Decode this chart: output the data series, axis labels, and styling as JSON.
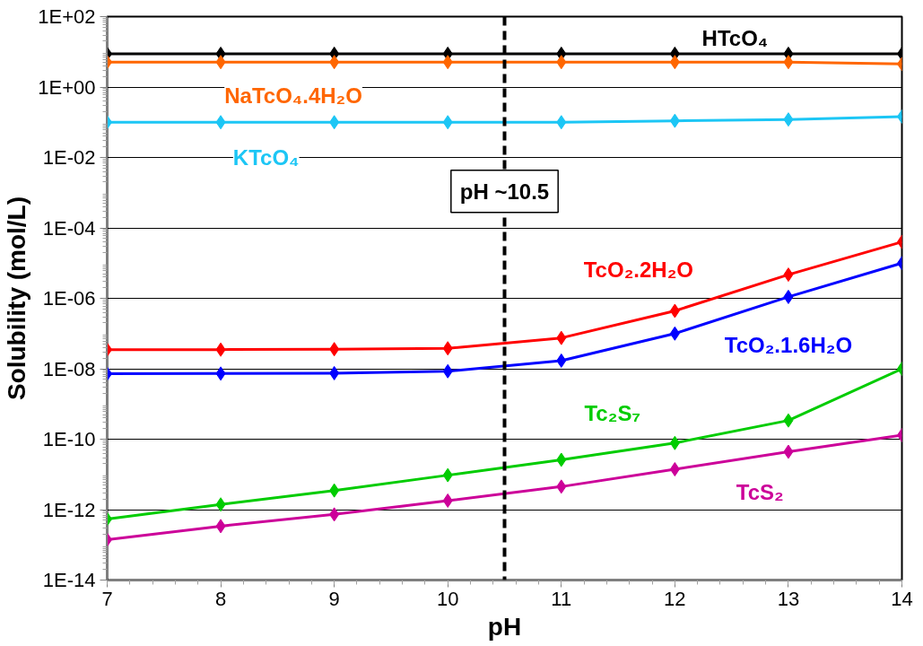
{
  "chart_data": {
    "type": "line",
    "xlabel": "pH",
    "ylabel": "Solubility (mol/L)",
    "x": [
      7,
      8,
      9,
      10,
      11,
      12,
      13,
      14
    ],
    "series": [
      {
        "name": "HTcO₄",
        "color": "#000000",
        "values": [
          8.8,
          8.8,
          8.8,
          8.8,
          8.8,
          8.8,
          8.8,
          8.8
        ]
      },
      {
        "name": "NaTcO₄.4H₂O",
        "color": "#ff6600",
        "values": [
          5.1,
          5.1,
          5.1,
          5.1,
          5.1,
          5.1,
          5.1,
          4.5
        ]
      },
      {
        "name": "KTcO₄",
        "color": "#1cc6f5",
        "values": [
          0.1,
          0.1,
          0.1,
          0.1,
          0.1,
          0.11,
          0.12,
          0.145
        ]
      },
      {
        "name": "TcO₂.2H₂O",
        "color": "#ff0000",
        "values": [
          3.5e-08,
          3.5e-08,
          3.6e-08,
          3.8e-08,
          7.5e-08,
          4.4e-07,
          4.7e-06,
          4e-05
        ]
      },
      {
        "name": "TcO₂.1.6H₂O",
        "color": "#0000ff",
        "values": [
          7.2e-09,
          7.3e-09,
          7.5e-09,
          8.5e-09,
          1.7e-08,
          1e-07,
          1.1e-06,
          1e-05
        ]
      },
      {
        "name": "Tc₂S₇",
        "color": "#00cc00",
        "values": [
          5.4e-13,
          1.4e-12,
          3.5e-12,
          9.5e-12,
          2.6e-11,
          7.8e-11,
          3.4e-10,
          1e-08
        ]
      },
      {
        "name": "TcS₂",
        "color": "#cc0099",
        "values": [
          1.4e-13,
          3.4e-13,
          7.3e-13,
          1.8e-12,
          4.5e-12,
          1.4e-11,
          4.4e-11,
          1.3e-10
        ]
      }
    ],
    "log": "y",
    "xlim": [
      7,
      14
    ],
    "ylim": [
      1e-14,
      100
    ],
    "xticks": [
      7,
      8,
      9,
      10,
      11,
      12,
      13,
      14
    ],
    "yticks": [
      {
        "value": 1e-14,
        "label": "1E-14"
      },
      {
        "value": 1e-12,
        "label": "1E-12"
      },
      {
        "value": 1e-10,
        "label": "1E-10"
      },
      {
        "value": 1e-08,
        "label": "1E-08"
      },
      {
        "value": 1e-06,
        "label": "1E-06"
      },
      {
        "value": 0.0001,
        "label": "1E-04"
      },
      {
        "value": 0.01,
        "label": "1E-02"
      },
      {
        "value": 1,
        "label": "1E+00"
      },
      {
        "value": 100,
        "label": "1E+02"
      }
    ],
    "grid": "y",
    "marker": "diamond",
    "line_style": "solid",
    "ref_lines": [
      {
        "axis": "x",
        "value": 10.5,
        "label": "pH ~10.5",
        "color": "#000000",
        "line_style": "dashed"
      }
    ]
  }
}
